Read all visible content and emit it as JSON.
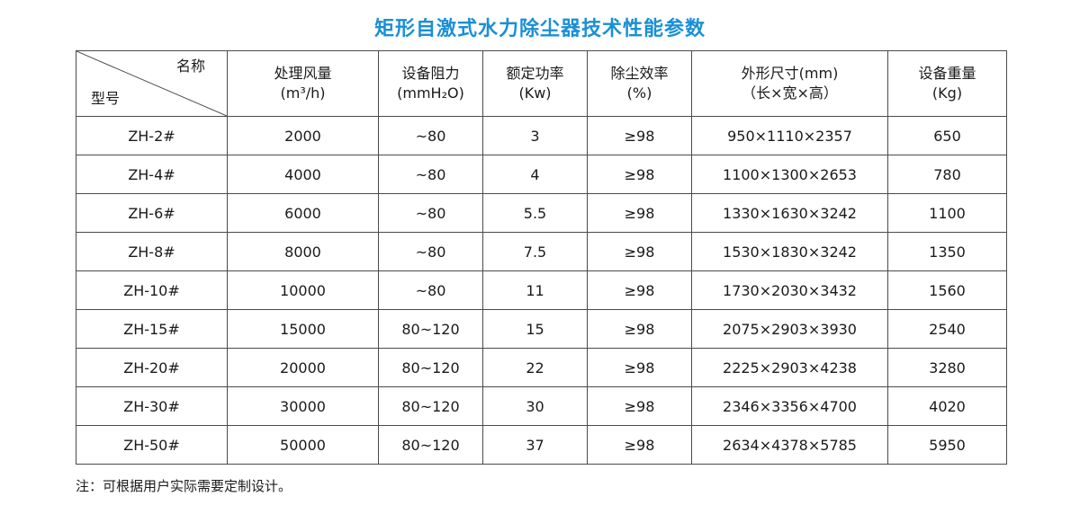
{
  "title": "矩形自激式水力除尘器技术性能参数",
  "header": {
    "corner_top": "名称",
    "corner_bottom": "型号",
    "columns": [
      {
        "line1": "处理风量",
        "line2": "(m³/h)"
      },
      {
        "line1": "设备阻力",
        "line2": "(mmH₂O)"
      },
      {
        "line1": "额定功率",
        "line2": "(Kw)"
      },
      {
        "line1": "除尘效率",
        "line2": "(%)"
      },
      {
        "line1": "外形尺寸(mm)",
        "line2": "（长×宽×高）"
      },
      {
        "line1": "设备重量",
        "line2": "(Kg)"
      }
    ]
  },
  "rows": [
    [
      "ZH-2#",
      "2000",
      "~80",
      "3",
      "≥98",
      "950×1110×2357",
      "650"
    ],
    [
      "ZH-4#",
      "4000",
      "~80",
      "4",
      "≥98",
      "1100×1300×2653",
      "780"
    ],
    [
      "ZH-6#",
      "6000",
      "~80",
      "5.5",
      "≥98",
      "1330×1630×3242",
      "1100"
    ],
    [
      "ZH-8#",
      "8000",
      "~80",
      "7.5",
      "≥98",
      "1530×1830×3242",
      "1350"
    ],
    [
      "ZH-10#",
      "10000",
      "~80",
      "11",
      "≥98",
      "1730×2030×3432",
      "1560"
    ],
    [
      "ZH-15#",
      "15000",
      "80~120",
      "15",
      "≥98",
      "2075×2903×3930",
      "2540"
    ],
    [
      "ZH-20#",
      "20000",
      "80~120",
      "22",
      "≥98",
      "2225×2903×4238",
      "3280"
    ],
    [
      "ZH-30#",
      "30000",
      "80~120",
      "30",
      "≥98",
      "2346×3356×4700",
      "4020"
    ],
    [
      "ZH-50#",
      "50000",
      "80~120",
      "37",
      "≥98",
      "2634×4378×5785",
      "5950"
    ]
  ],
  "note": "注：可根据用户实际需要定制设计。",
  "colors": {
    "title": "#1a8fd6",
    "border": "#4a4a4a"
  }
}
